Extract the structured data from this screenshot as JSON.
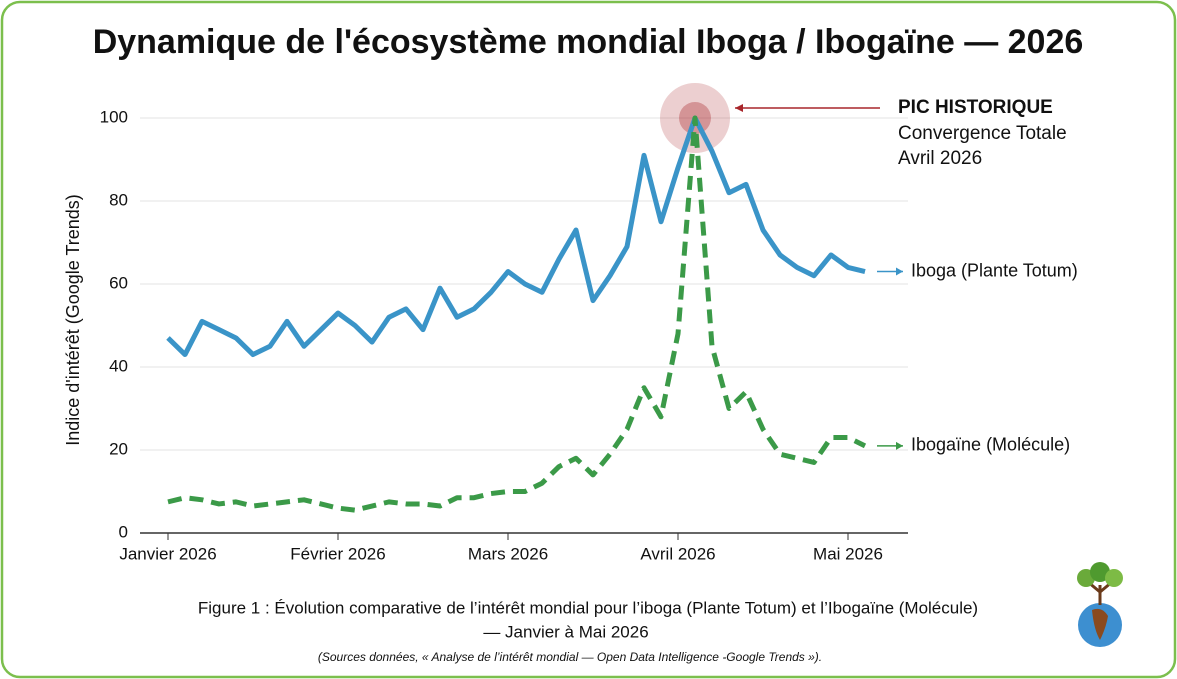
{
  "chart_data": {
    "type": "line",
    "title": "Dynamique de l'écosystème mondial Iboga / Ibogaïne — 2026",
    "y_label": "Indice d'intérêt (Google Trends)",
    "categories": [
      "Janvier 2026",
      null,
      null,
      null,
      null,
      null,
      null,
      null,
      null,
      null,
      "Février 2026",
      null,
      null,
      null,
      null,
      null,
      null,
      null,
      null,
      null,
      "Mars 2026",
      null,
      null,
      null,
      null,
      null,
      null,
      null,
      null,
      null,
      "Avril 2026",
      null,
      null,
      null,
      null,
      null,
      null,
      null,
      null,
      null,
      "Mai 2026",
      null
    ],
    "series": [
      {
        "name": "Iboga (Plante Totum)",
        "color": "#3a94c8",
        "dash": false,
        "values": [
          47,
          43,
          51,
          49,
          47,
          43,
          45,
          51,
          45,
          49,
          53,
          50,
          46,
          52,
          54,
          49,
          59,
          52,
          54,
          58,
          63,
          60,
          58,
          66,
          73,
          56,
          62,
          69,
          91,
          75,
          88,
          100,
          92,
          82,
          84,
          73,
          67,
          64,
          62,
          67,
          64,
          63
        ]
      },
      {
        "name": "Ibogaïne (Molécule)",
        "color": "#3b9a48",
        "dash": true,
        "values": [
          7.5,
          8.5,
          8,
          7,
          7.5,
          6.5,
          7,
          7.5,
          8,
          7,
          6,
          5.5,
          6.5,
          7.5,
          7,
          7,
          6.5,
          8.5,
          8.5,
          9.5,
          10,
          10,
          12,
          16,
          18,
          14,
          19,
          25,
          35,
          28,
          48,
          100,
          45,
          30,
          34,
          25,
          19,
          18,
          17,
          23,
          23,
          21
        ]
      }
    ],
    "ylim": [
      0,
      100
    ],
    "yticks": [
      0,
      20,
      40,
      60,
      80,
      100
    ],
    "grid": true,
    "annotation": {
      "title": "PIC HISTORIQUE",
      "lines": [
        "Convergence Totale",
        "Avril 2026"
      ],
      "color": "#a8262b"
    },
    "caption": [
      "Figure 1 : Évolution comparative de l’intérêt mondial pour l’iboga (Plante Totum) et l’Ibogaïne (Molécule)",
      "— Janvier à Mai 2026"
    ],
    "source": "(Sources données, « Analyse de l’intérêt mondial — Open Data Intelligence -Google Trends »)."
  }
}
